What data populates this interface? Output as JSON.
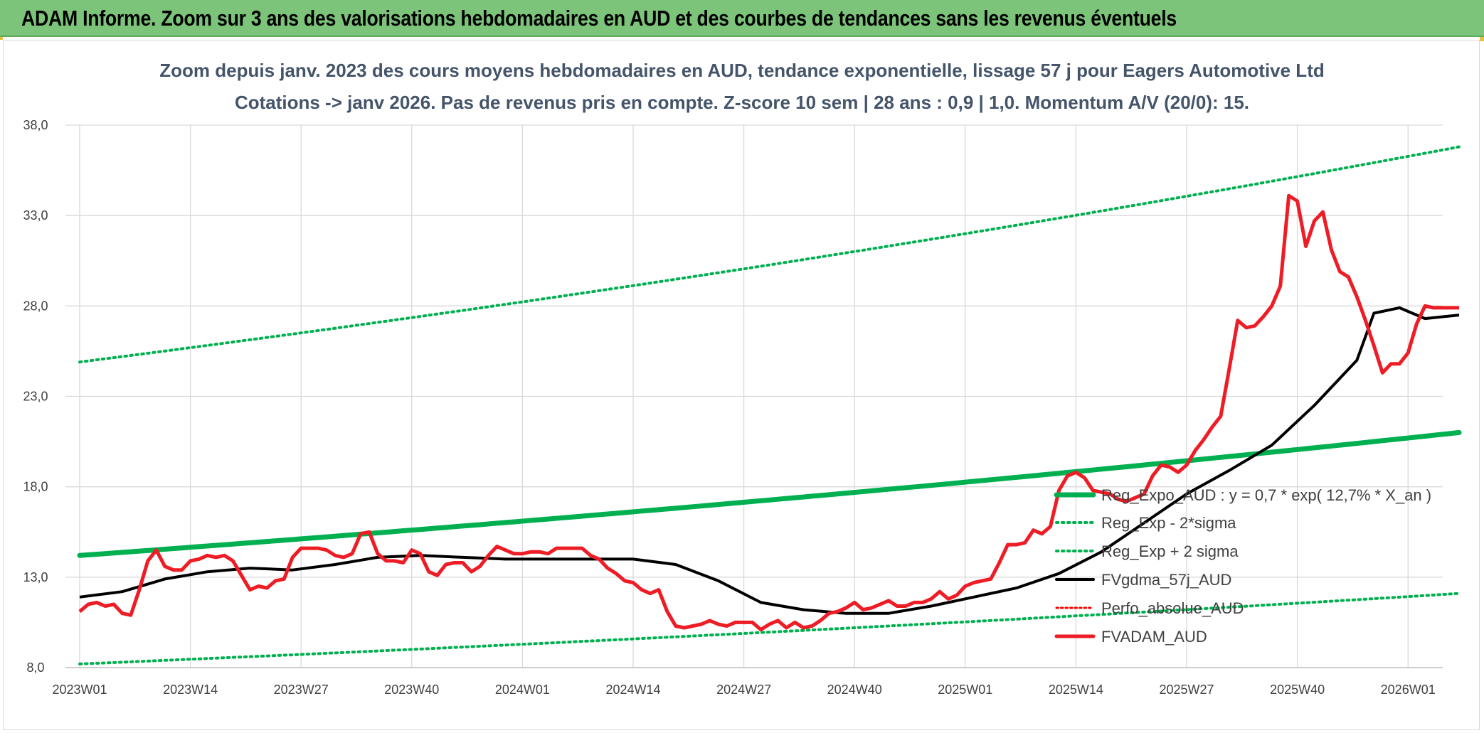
{
  "banner": {
    "title": "ADAM Informe. Zoom sur 3 ans des valorisations hebdomadaires en AUD et des courbes de tendances sans les revenus éventuels"
  },
  "colors": {
    "banner_bg": "#7cc47a",
    "trend": "#00b050",
    "fvgdma": "#000000",
    "fvadam": "#ee1c25",
    "perfo": "#ff0000",
    "grid": "#d9d9d9",
    "title": "#44546a"
  },
  "chart_data": {
    "type": "line",
    "title": "Zoom depuis janv. 2023 des cours moyens hebdomadaires en AUD, tendance exponentielle, lissage 57 j pour Eagers Automotive Ltd",
    "subtitle": "Cotations -> janv 2026. Pas de revenus pris en compte. Z-score 10 sem | 28 ans : 0,9 | 1,0. Momentum A/V (20/0): 15.",
    "xlabel": "",
    "ylabel": "",
    "ylim": [
      8.0,
      38.0
    ],
    "yticks": [
      "8,0",
      "13,0",
      "18,0",
      "23,0",
      "28,0",
      "33,0",
      "38,0"
    ],
    "xticks": [
      "2023W01",
      "2023W14",
      "2023W27",
      "2023W40",
      "2024W01",
      "2024W14",
      "2024W27",
      "2024W40",
      "2025W01",
      "2025W14",
      "2025W27",
      "2025W40",
      "2026W01"
    ],
    "xlim_weeks": [
      0,
      162
    ],
    "grid": true,
    "legend_position": "right, lower-middle",
    "series": [
      {
        "name": "Reg_Expo_AUD : y = 0,7 * exp( 12,7% *  X_an )",
        "style": "solid-thick",
        "color": "#00b050",
        "x": [
          0,
          20,
          40,
          60,
          80,
          100,
          120,
          140,
          160
        ],
        "y": [
          14.2,
          14.8,
          15.4,
          16.1,
          16.7,
          17.4,
          18.2,
          19.0,
          19.8
        ],
        "x_end": 162,
        "y_end": 21.0,
        "exp_start": 14.2,
        "exp_end": 21.0
      },
      {
        "name": "Reg_Exp - 2*sigma",
        "style": "dotted",
        "color": "#00b050",
        "y_start": 8.2,
        "y_end": 12.1
      },
      {
        "name": "Reg_Exp + 2 sigma",
        "style": "dotted",
        "color": "#00b050",
        "y_start": 24.9,
        "y_end": 36.8
      },
      {
        "name": "FVgdma_57j_AUD",
        "style": "solid",
        "color": "#000000",
        "x": [
          0,
          5,
          10,
          15,
          20,
          25,
          30,
          35,
          40,
          45,
          50,
          55,
          60,
          65,
          70,
          75,
          80,
          85,
          90,
          95,
          100,
          105,
          110,
          115,
          120,
          125,
          130,
          135,
          140,
          145,
          150,
          152,
          155,
          158,
          162
        ],
        "y": [
          11.9,
          12.2,
          12.9,
          13.3,
          13.5,
          13.4,
          13.7,
          14.1,
          14.2,
          14.1,
          14.0,
          14.0,
          14.0,
          14.0,
          13.7,
          12.8,
          11.6,
          11.2,
          11.0,
          11.0,
          11.4,
          11.9,
          12.4,
          13.2,
          14.4,
          16.0,
          17.6,
          18.9,
          20.3,
          22.5,
          25.0,
          27.6,
          27.9,
          27.3,
          27.5
        ]
      },
      {
        "name": "Perfo_absolue_AUD",
        "style": "dotted",
        "color": "#ff0000",
        "x": [],
        "y": []
      },
      {
        "name": "FVADAM_AUD",
        "style": "solid-thick",
        "color": "#ee1c25",
        "x": [
          0,
          1,
          2,
          3,
          4,
          5,
          6,
          7,
          8,
          9,
          10,
          11,
          12,
          13,
          14,
          15,
          16,
          17,
          18,
          19,
          20,
          21,
          22,
          23,
          24,
          25,
          26,
          27,
          28,
          29,
          30,
          31,
          32,
          33,
          34,
          35,
          36,
          37,
          38,
          39,
          40,
          41,
          42,
          43,
          44,
          45,
          46,
          47,
          48,
          49,
          50,
          51,
          52,
          53,
          54,
          55,
          56,
          57,
          58,
          59,
          60,
          61,
          62,
          63,
          64,
          65,
          66,
          67,
          68,
          69,
          70,
          71,
          72,
          73,
          74,
          75,
          76,
          77,
          78,
          79,
          80,
          81,
          82,
          83,
          84,
          85,
          86,
          87,
          88,
          89,
          90,
          91,
          92,
          93,
          94,
          95,
          96,
          97,
          98,
          99,
          100,
          101,
          102,
          103,
          104,
          105,
          106,
          107,
          108,
          109,
          110,
          111,
          112,
          113,
          114,
          115,
          116,
          117,
          118,
          119,
          120,
          121,
          122,
          123,
          124,
          125,
          126,
          127,
          128,
          129,
          130,
          131,
          132,
          133,
          134,
          135,
          136,
          137,
          138,
          139,
          140,
          141,
          142,
          143,
          144,
          145,
          146,
          147,
          148,
          149,
          150,
          151,
          152,
          153,
          154,
          155,
          156,
          157,
          158,
          159,
          160,
          161,
          162
        ],
        "y": [
          11.1,
          11.5,
          11.6,
          11.4,
          11.5,
          11.0,
          10.9,
          12.3,
          13.9,
          14.5,
          13.6,
          13.4,
          13.4,
          13.9,
          14.0,
          14.2,
          14.1,
          14.2,
          13.9,
          13.1,
          12.3,
          12.5,
          12.4,
          12.8,
          12.9,
          14.1,
          14.6,
          14.6,
          14.6,
          14.5,
          14.2,
          14.1,
          14.3,
          15.4,
          15.5,
          14.3,
          13.9,
          13.9,
          13.8,
          14.5,
          14.3,
          13.3,
          13.1,
          13.7,
          13.8,
          13.8,
          13.3,
          13.6,
          14.2,
          14.7,
          14.5,
          14.3,
          14.3,
          14.4,
          14.4,
          14.3,
          14.6,
          14.6,
          14.6,
          14.6,
          14.2,
          14.0,
          13.5,
          13.2,
          12.8,
          12.7,
          12.3,
          12.1,
          12.3,
          11.1,
          10.3,
          10.2,
          10.3,
          10.4,
          10.6,
          10.4,
          10.3,
          10.5,
          10.5,
          10.5,
          10.1,
          10.4,
          10.6,
          10.2,
          10.5,
          10.2,
          10.3,
          10.6,
          11.0,
          11.1,
          11.3,
          11.6,
          11.2,
          11.3,
          11.5,
          11.7,
          11.4,
          11.4,
          11.6,
          11.6,
          11.8,
          12.2,
          11.8,
          12.0,
          12.5,
          12.7,
          12.8,
          12.9,
          13.8,
          14.8,
          14.8,
          14.9,
          15.6,
          15.4,
          15.8,
          17.8,
          18.6,
          18.8,
          18.5,
          17.8,
          17.7,
          17.6,
          17.3,
          17.2,
          17.4,
          17.6,
          18.6,
          19.2,
          19.1,
          18.8,
          19.2,
          20.0,
          20.6,
          21.3,
          21.9,
          24.5,
          27.2,
          26.8,
          26.9,
          27.4,
          28.0,
          29.1,
          34.1,
          33.8,
          31.3,
          32.7,
          33.2,
          31.1,
          29.9,
          29.6,
          28.5,
          27.2,
          25.8,
          24.3,
          24.8,
          24.8,
          25.4,
          27.0,
          28.0,
          27.9,
          27.9,
          27.9,
          27.9
        ]
      }
    ]
  }
}
